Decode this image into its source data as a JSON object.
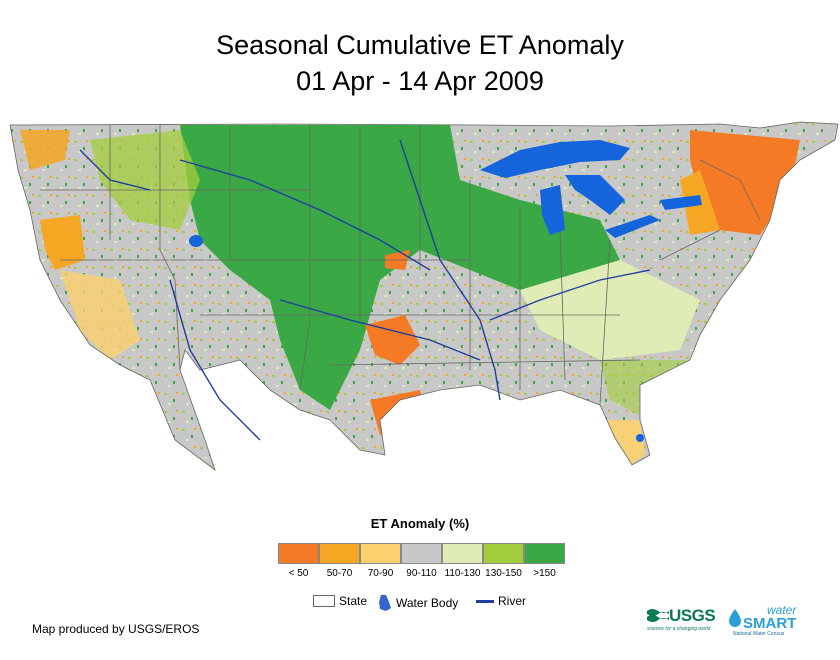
{
  "title_line1": "Seasonal Cumulative ET Anomaly",
  "title_line2": "01 Apr - 14 Apr 2009",
  "legend": {
    "title": "ET Anomaly (%)",
    "classes": [
      {
        "label": "< 50",
        "color": "#f47a25"
      },
      {
        "label": "50-70",
        "color": "#f5a623"
      },
      {
        "label": "70-90",
        "color": "#fdd06e"
      },
      {
        "label": "90-110",
        "color": "#c8c8c8"
      },
      {
        "label": "110-130",
        "color": "#dfecb5"
      },
      {
        "label": "130-150",
        "color": "#a3ce3c"
      },
      {
        "label": ">150",
        "color": "#3aa845"
      }
    ],
    "reference": {
      "state": "State",
      "water_body": "Water Body",
      "river": "River"
    },
    "colors": {
      "water": "#1464dc",
      "river": "#1f3fa0",
      "state_line": "#666666"
    }
  },
  "credit": "Map produced by USGS/EROS",
  "logos": {
    "usgs": "USGS",
    "usgs_tagline": "science for a changing world",
    "watersmart_top": "water",
    "watersmart_main": "SMART",
    "watersmart_tagline": "National Water Census"
  }
}
